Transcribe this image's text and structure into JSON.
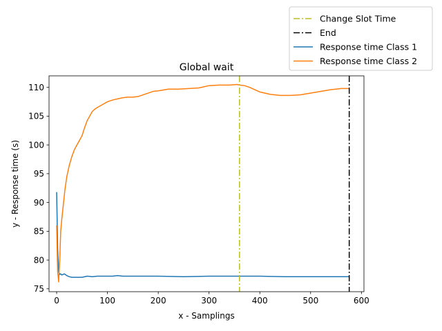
{
  "chart_data": {
    "type": "line",
    "title": "Global wait",
    "xlabel": "x - Samplings",
    "ylabel": "y - Response time (s)",
    "xlim": [
      -15,
      605
    ],
    "ylim": [
      74.5,
      112
    ],
    "xticks": [
      0,
      100,
      200,
      300,
      400,
      500,
      600
    ],
    "yticks": [
      75,
      80,
      85,
      90,
      95,
      100,
      105,
      110
    ],
    "grid": false,
    "legend_position": "top-right (outside plot)",
    "vlines": [
      {
        "name": "Change Slot Time",
        "x": 360,
        "color": "#bcbd22",
        "style": "dash-dot"
      },
      {
        "name": "End",
        "x": 576,
        "color": "#000000",
        "style": "dash-dot"
      }
    ],
    "series": [
      {
        "name": "Response time Class 1",
        "color": "#1f77b4",
        "x": [
          0,
          2,
          4,
          6,
          8,
          10,
          15,
          20,
          25,
          30,
          40,
          50,
          60,
          70,
          80,
          90,
          100,
          110,
          120,
          130,
          150,
          200,
          250,
          300,
          350,
          400,
          450,
          500,
          550,
          576
        ],
        "y": [
          91.8,
          82.0,
          78.0,
          77.5,
          77.6,
          77.4,
          77.6,
          77.3,
          77.1,
          77.0,
          77.0,
          77.0,
          77.2,
          77.1,
          77.2,
          77.2,
          77.2,
          77.2,
          77.3,
          77.2,
          77.2,
          77.2,
          77.1,
          77.2,
          77.2,
          77.2,
          77.1,
          77.1,
          77.1,
          77.1
        ]
      },
      {
        "name": "Response time Class 2",
        "color": "#ff7f0e",
        "x": [
          0,
          2,
          4,
          6,
          8,
          10,
          13,
          16,
          20,
          25,
          30,
          35,
          40,
          45,
          50,
          55,
          60,
          65,
          70,
          75,
          80,
          90,
          100,
          110,
          120,
          130,
          140,
          150,
          160,
          170,
          180,
          190,
          200,
          220,
          240,
          260,
          280,
          300,
          320,
          340,
          355,
          360,
          370,
          380,
          390,
          400,
          420,
          440,
          460,
          480,
          500,
          520,
          540,
          550,
          560,
          576
        ],
        "y": [
          86.0,
          78.0,
          76.2,
          80.0,
          85.0,
          87.0,
          89.5,
          92.0,
          94.5,
          96.5,
          98.0,
          99.2,
          100.0,
          100.8,
          101.6,
          103.0,
          104.2,
          105.0,
          105.8,
          106.2,
          106.5,
          107.0,
          107.5,
          107.8,
          108.0,
          108.2,
          108.3,
          108.3,
          108.4,
          108.7,
          109.0,
          109.3,
          109.4,
          109.7,
          109.7,
          109.8,
          109.9,
          110.3,
          110.4,
          110.4,
          110.5,
          110.4,
          110.3,
          110.0,
          109.6,
          109.2,
          108.8,
          108.6,
          108.6,
          108.7,
          109.0,
          109.3,
          109.6,
          109.7,
          109.8,
          109.8
        ]
      }
    ]
  }
}
